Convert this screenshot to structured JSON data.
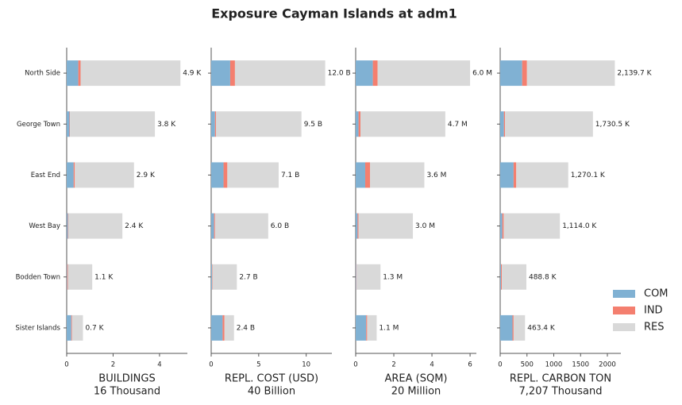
{
  "chart_data": {
    "type": "bar",
    "orientation": "horizontal",
    "stacked": true,
    "title": "Exposure Cayman Islands at adm1",
    "categories": [
      "North Side",
      "George Town",
      "East End",
      "West Bay",
      "Bodden Town",
      "Sister Islands"
    ],
    "series": [
      {
        "name": "COM",
        "color": "#80b1d3"
      },
      {
        "name": "IND",
        "color": "#f47f6f"
      },
      {
        "name": "RES",
        "color": "#d9d9d9"
      }
    ],
    "legend": "lower right",
    "panels": [
      {
        "xlabel": "BUILDINGS",
        "xlabel_sub": "16 Thousand",
        "xlim": [
          0,
          5.2
        ],
        "xticks": [
          0,
          2,
          4
        ],
        "values": [
          [
            0.5,
            0.12,
            0.3,
            0.05,
            0.02,
            0.2
          ],
          [
            0.1,
            0.02,
            0.05,
            0.02,
            0.03,
            0.03
          ],
          [
            4.3,
            3.66,
            2.55,
            2.33,
            1.05,
            0.47
          ]
        ],
        "totals": [
          4.9,
          3.8,
          2.9,
          2.4,
          1.1,
          0.7
        ],
        "value_labels": [
          "4.9 K",
          "3.8 K",
          "2.9 K",
          "2.4 K",
          "1.1 K",
          "0.7 K"
        ]
      },
      {
        "xlabel": "REPL. COST (USD)",
        "xlabel_sub": "40 Billion",
        "xlim": [
          0,
          12.7
        ],
        "xticks": [
          0,
          5,
          10
        ],
        "values": [
          [
            2.0,
            0.4,
            1.3,
            0.3,
            0.1,
            1.2
          ],
          [
            0.5,
            0.1,
            0.4,
            0.1,
            0.05,
            0.2
          ],
          [
            9.5,
            9.0,
            5.4,
            5.6,
            2.55,
            1.0
          ]
        ],
        "totals": [
          12.0,
          9.5,
          7.1,
          6.0,
          2.7,
          2.4
        ],
        "value_labels": [
          "12.0 B",
          "9.5 B",
          "7.1 B",
          "6.0 B",
          "2.7 B",
          "2.4 B"
        ]
      },
      {
        "xlabel": "AREA (SQM)",
        "xlabel_sub": "20 Million",
        "xlim": [
          0,
          6.33
        ],
        "xticks": [
          0,
          2,
          4,
          6
        ],
        "values": [
          [
            0.9,
            0.15,
            0.5,
            0.1,
            0.03,
            0.55
          ],
          [
            0.25,
            0.1,
            0.25,
            0.05,
            0.02,
            0.05
          ],
          [
            4.85,
            4.45,
            2.85,
            2.85,
            1.25,
            0.5
          ]
        ],
        "totals": [
          6.0,
          4.7,
          3.6,
          3.0,
          1.3,
          1.1
        ],
        "value_labels": [
          "6.0 M",
          "4.7 M",
          "3.6 M",
          "3.0 M",
          "1.3 M",
          "1.1 M"
        ]
      },
      {
        "xlabel": "REPL. CARBON TON",
        "xlabel_sub": "7,207 Thousand",
        "xlim": [
          0,
          2252
        ],
        "xticks": [
          0,
          500,
          1000,
          1500,
          2000
        ],
        "values": [
          [
            410,
            70,
            250,
            40,
            15,
            230
          ],
          [
            90,
            20,
            50,
            25,
            15,
            20
          ],
          [
            1639.7,
            1640.5,
            970.1,
            1049,
            458.8,
            213.4
          ]
        ],
        "totals": [
          2139.7,
          1730.5,
          1270.1,
          1114.0,
          488.8,
          463.4
        ],
        "value_labels": [
          "2,139.7 K",
          "1,730.5 K",
          "1,270.1 K",
          "1,114.0 K",
          "488.8 K",
          "463.4 K"
        ]
      }
    ]
  }
}
